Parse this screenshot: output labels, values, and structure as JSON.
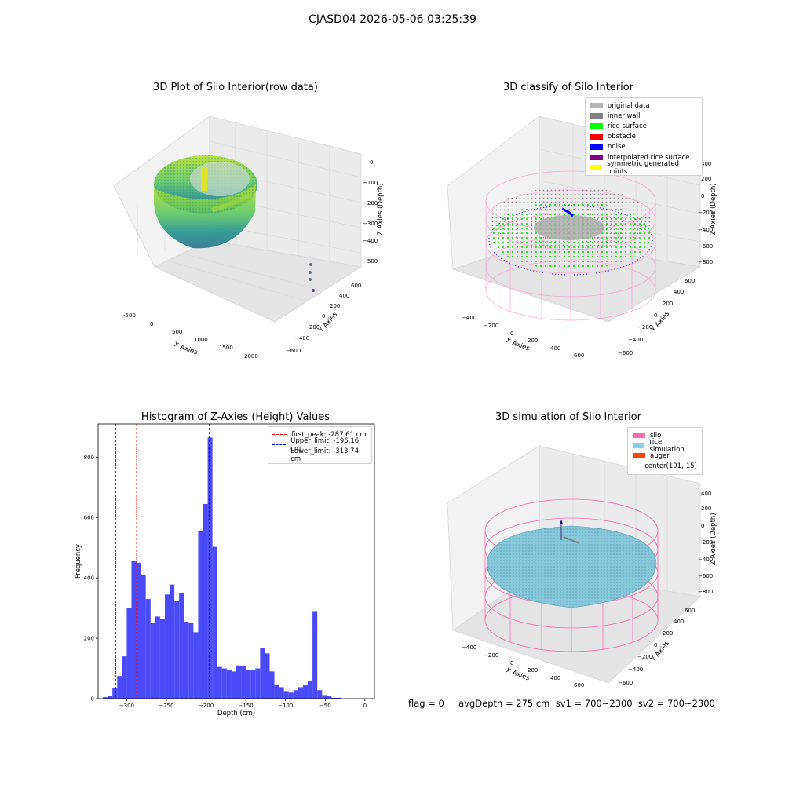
{
  "figure": {
    "suptitle": "CJASD04 2026-05-06 03:25:39"
  },
  "panels": {
    "raw": {
      "title": "3D Plot of Silo Interior(row data)",
      "xlabel": "X Axies",
      "ylabel": "Y Axies",
      "zlabel": "Z Axies (Depth)",
      "xticks": [
        "-500",
        "0",
        "500",
        "1000",
        "1500",
        "2000"
      ],
      "yticks": [
        "600",
        "400",
        "200",
        "0",
        "−200",
        "−400",
        "−600"
      ],
      "zticks": [
        "0",
        "−100",
        "−200",
        "−300",
        "−400",
        "−500"
      ]
    },
    "classify": {
      "title": "3D classify of Silo Interior",
      "xlabel": "X Axies",
      "ylabel": "Y Axies",
      "zlabel": "Z Axies (Depth)",
      "xticks": [
        "−400",
        "−200",
        "0",
        "200",
        "400",
        "600"
      ],
      "yticks": [
        "600",
        "400",
        "200",
        "0",
        "−200",
        "−400",
        "−600"
      ],
      "zticks": [
        "400",
        "200",
        "0",
        "−200",
        "−400",
        "−600",
        "−800"
      ],
      "legend": [
        {
          "label": "original data",
          "color": "#b4b4b4"
        },
        {
          "label": "inner wall",
          "color": "#808080"
        },
        {
          "label": "rice surface",
          "color": "#00ff00"
        },
        {
          "label": "obstacle",
          "color": "#ff0000"
        },
        {
          "label": "noise",
          "color": "#0000ff"
        },
        {
          "label": "interpolated rice surface",
          "color": "#800080"
        },
        {
          "label": "symmetric generated points",
          "color": "#ffff00"
        }
      ]
    },
    "simulation": {
      "title": "3D simulation of Silo Interior",
      "xlabel": "X Axies",
      "ylabel": "Y Axies",
      "zlabel": "Z Axies (Depth)",
      "xticks": [
        "−400",
        "−200",
        "0",
        "200",
        "400",
        "600"
      ],
      "yticks": [
        "600",
        "400",
        "200",
        "0",
        "−200",
        "−400",
        "−600"
      ],
      "zticks": [
        "400",
        "200",
        "0",
        "−200",
        "−400",
        "−600",
        "−800"
      ],
      "legend": [
        {
          "label": "silo",
          "color": "#ff69b4"
        },
        {
          "label": "rice simulation",
          "color": "#87ceeb"
        },
        {
          "label": "auger",
          "color": "#ff4500"
        },
        {
          "label": "center(101,-15)",
          "color": ""
        }
      ]
    }
  },
  "status_text": "flag = 0     avgDepth = 275 cm  sv1 = 700~2300  sv2 = 700~2300",
  "chart_data": {
    "type": "bar",
    "title": "Histogram of Z-Axies (Height) Values",
    "xlabel": "Depth (cm)",
    "ylabel": "Frequency",
    "xlim": [
      -336,
      12
    ],
    "ylim": [
      0,
      910
    ],
    "xticks": [
      -300,
      -250,
      -200,
      -150,
      -100,
      -50,
      0
    ],
    "yticks": [
      0,
      200,
      400,
      600,
      800
    ],
    "bar_color": "#4a4af8",
    "bin_start": -330,
    "bin_width": 6,
    "values": [
      5,
      10,
      35,
      75,
      140,
      300,
      455,
      450,
      410,
      330,
      250,
      272,
      265,
      345,
      378,
      325,
      350,
      255,
      252,
      220,
      555,
      645,
      865,
      503,
      105,
      100,
      95,
      90,
      110,
      108,
      95,
      95,
      100,
      168,
      150,
      90,
      45,
      38,
      25,
      20,
      28,
      38,
      45,
      60,
      290,
      28,
      12,
      8,
      3,
      3
    ],
    "vlines": [
      {
        "label": "first_peak: -287.61 cm",
        "x": -287.61,
        "color": "#ff0000"
      },
      {
        "label": "Upper_limit: -196.16 cm",
        "x": -196.16,
        "color": "#0000ff"
      },
      {
        "label": "Lower_limit: -313.74 cm",
        "x": -313.74,
        "color": "#0000ff"
      }
    ]
  }
}
